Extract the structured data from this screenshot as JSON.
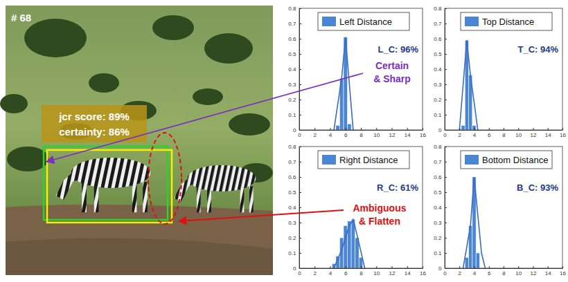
{
  "figure": {
    "frame_label": "# 68",
    "box_labels": [
      "jcr score: 89%",
      "certainty: 86%"
    ],
    "callouts": [
      [
        "Certain",
        "& Sharp"
      ],
      [
        "Ambiguous",
        "& Flatten"
      ]
    ]
  },
  "chart_data": [
    {
      "type": "histogram",
      "legend": "top",
      "series": [
        {
          "name": "Left Distance",
          "type": "bar",
          "color": "#4a86d4",
          "bins": [
            4.75,
            5.25,
            5.75,
            6.25,
            6.75
          ],
          "values": [
            0.03,
            0.34,
            0.61,
            0.04
          ]
        },
        {
          "type": "line",
          "color": "#3a6cc6",
          "x": [
            4.5,
            5.5,
            6,
            7
          ],
          "values": [
            0,
            0.34,
            0.61,
            0
          ]
        }
      ],
      "xlim": [
        0,
        16
      ],
      "ylim": [
        0,
        0.8
      ],
      "xticks": [
        0,
        2,
        4,
        6,
        8,
        10,
        12,
        14,
        16
      ],
      "yticks": [
        0,
        0.1,
        0.2,
        0.3,
        0.4,
        0.5,
        0.6,
        0.7,
        0.8
      ],
      "annotations": [
        "L_C: 96%"
      ]
    },
    {
      "type": "histogram",
      "legend": "top",
      "series": [
        {
          "name": "Top Distance",
          "type": "bar",
          "color": "#4a86d4",
          "bins": [
            2.25,
            2.75,
            3.25,
            3.75,
            4.25
          ],
          "values": [
            0.03,
            0.59,
            0.36,
            0.03
          ]
        },
        {
          "type": "line",
          "color": "#3a6cc6",
          "x": [
            2,
            3,
            3.5,
            4.5
          ],
          "values": [
            0,
            0.59,
            0.36,
            0
          ]
        }
      ],
      "xlim": [
        0,
        16
      ],
      "ylim": [
        0,
        0.8
      ],
      "xticks": [
        0,
        2,
        4,
        6,
        8,
        10,
        12,
        14,
        16
      ],
      "yticks": [
        0,
        0.1,
        0.2,
        0.3,
        0.4,
        0.5,
        0.6,
        0.7,
        0.8
      ],
      "annotations": [
        "T_C: 94%"
      ]
    },
    {
      "type": "histogram",
      "legend": "top",
      "series": [
        {
          "name": "Right Distance",
          "type": "bar",
          "color": "#4a86d4",
          "bins": [
            4.25,
            4.75,
            5.25,
            5.75,
            6.25,
            6.75,
            7.25,
            7.75,
            8.25
          ],
          "values": [
            0.03,
            0.08,
            0.2,
            0.28,
            0.31,
            0.32,
            0.2,
            0.07
          ]
        },
        {
          "type": "line",
          "color": "#3a6cc6",
          "x": [
            4.5,
            5.5,
            6.5,
            7,
            7.5,
            8.5
          ],
          "values": [
            0,
            0.12,
            0.28,
            0.32,
            0.22,
            0
          ]
        }
      ],
      "xlim": [
        0,
        16
      ],
      "ylim": [
        0,
        0.8
      ],
      "xticks": [
        0,
        2,
        4,
        6,
        8,
        10,
        12,
        14,
        16
      ],
      "yticks": [
        0,
        0.1,
        0.2,
        0.3,
        0.4,
        0.5,
        0.6,
        0.7,
        0.8
      ],
      "annotations": [
        "R_C: 61%"
      ]
    },
    {
      "type": "histogram",
      "legend": "top",
      "series": [
        {
          "name": "Bottom Distance",
          "type": "bar",
          "color": "#4a86d4",
          "bins": [
            2.75,
            3.25,
            3.75,
            4.25,
            4.75
          ],
          "values": [
            0.07,
            0.28,
            0.6,
            0.1
          ]
        },
        {
          "type": "line",
          "color": "#3a6cc6",
          "x": [
            2.5,
            3.5,
            4,
            5,
            5.5
          ],
          "values": [
            0,
            0.28,
            0.6,
            0.1,
            0
          ]
        }
      ],
      "xlim": [
        0,
        16
      ],
      "ylim": [
        0,
        0.8
      ],
      "xticks": [
        0,
        2,
        4,
        6,
        8,
        10,
        12,
        14,
        16
      ],
      "yticks": [
        0,
        0.1,
        0.2,
        0.3,
        0.4,
        0.5,
        0.6,
        0.7,
        0.8
      ],
      "annotations": [
        "B_C: 93%"
      ]
    }
  ]
}
